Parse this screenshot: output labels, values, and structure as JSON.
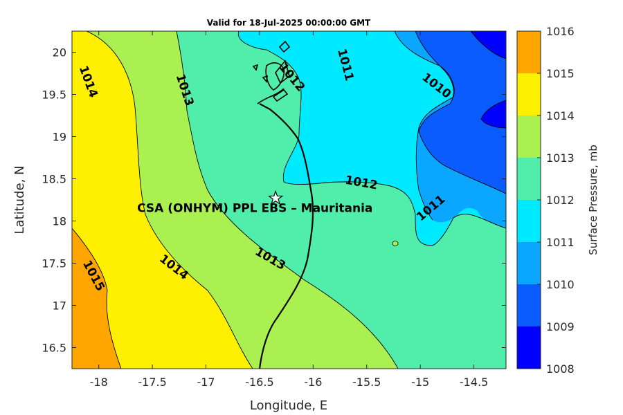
{
  "title": "Valid for 18-Jul-2025 00:00:00 GMT",
  "chart_data": {
    "type": "contour map",
    "xlabel": "Longitude, E",
    "ylabel": "Latitude, N",
    "xlim": [
      -18.25,
      -14.2
    ],
    "ylim": [
      16.25,
      20.25
    ],
    "xticks": [
      -18,
      -17.5,
      -17,
      -16.5,
      -16,
      -15.5,
      -15,
      -14.5
    ],
    "xtick_labels": [
      "-18",
      "-17.5",
      "-17",
      "-16.5",
      "-16",
      "-15.5",
      "-15",
      "-14.5"
    ],
    "yticks": [
      16.5,
      17,
      17.5,
      18,
      18.5,
      19,
      19.5,
      20
    ],
    "ytick_labels": [
      "16.5",
      "17",
      "17.5",
      "18",
      "18.5",
      "19",
      "19.5",
      "20"
    ],
    "colorbar": {
      "label": "Surface Pressure, mb",
      "levels": [
        1008,
        1009,
        1010,
        1011,
        1012,
        1013,
        1014,
        1015,
        1016
      ],
      "level_labels": [
        "1008",
        "1009",
        "1010",
        "1011",
        "1012",
        "1013",
        "1014",
        "1015",
        "1016"
      ],
      "colors": [
        "#0000ff",
        "#0a5cff",
        "#0aa6ff",
        "#00eaff",
        "#50eeaa",
        "#aaf050",
        "#fff000",
        "#ffa500",
        "#ff5a00"
      ]
    },
    "contour_labels": [
      {
        "text": "1015",
        "lon": -18.05,
        "lat": 17.35
      },
      {
        "text": "1014",
        "lon": -18.1,
        "lat": 19.65
      },
      {
        "text": "1014",
        "lon": -17.3,
        "lat": 17.45
      },
      {
        "text": "1013",
        "lon": -17.2,
        "lat": 19.55
      },
      {
        "text": "1013",
        "lon": -16.4,
        "lat": 17.55
      },
      {
        "text": "1012",
        "lon": -16.2,
        "lat": 19.7
      },
      {
        "text": "1012",
        "lon": -15.55,
        "lat": 18.45
      },
      {
        "text": "1011",
        "lon": -15.7,
        "lat": 19.85
      },
      {
        "text": "1011",
        "lon": -14.9,
        "lat": 18.15
      },
      {
        "text": "1010",
        "lon": -14.85,
        "lat": 19.6
      }
    ],
    "station": {
      "name": "CSA (ONHYM) PPL EBS  – Mauritania",
      "lon": -16.35,
      "lat": 18.27
    }
  }
}
